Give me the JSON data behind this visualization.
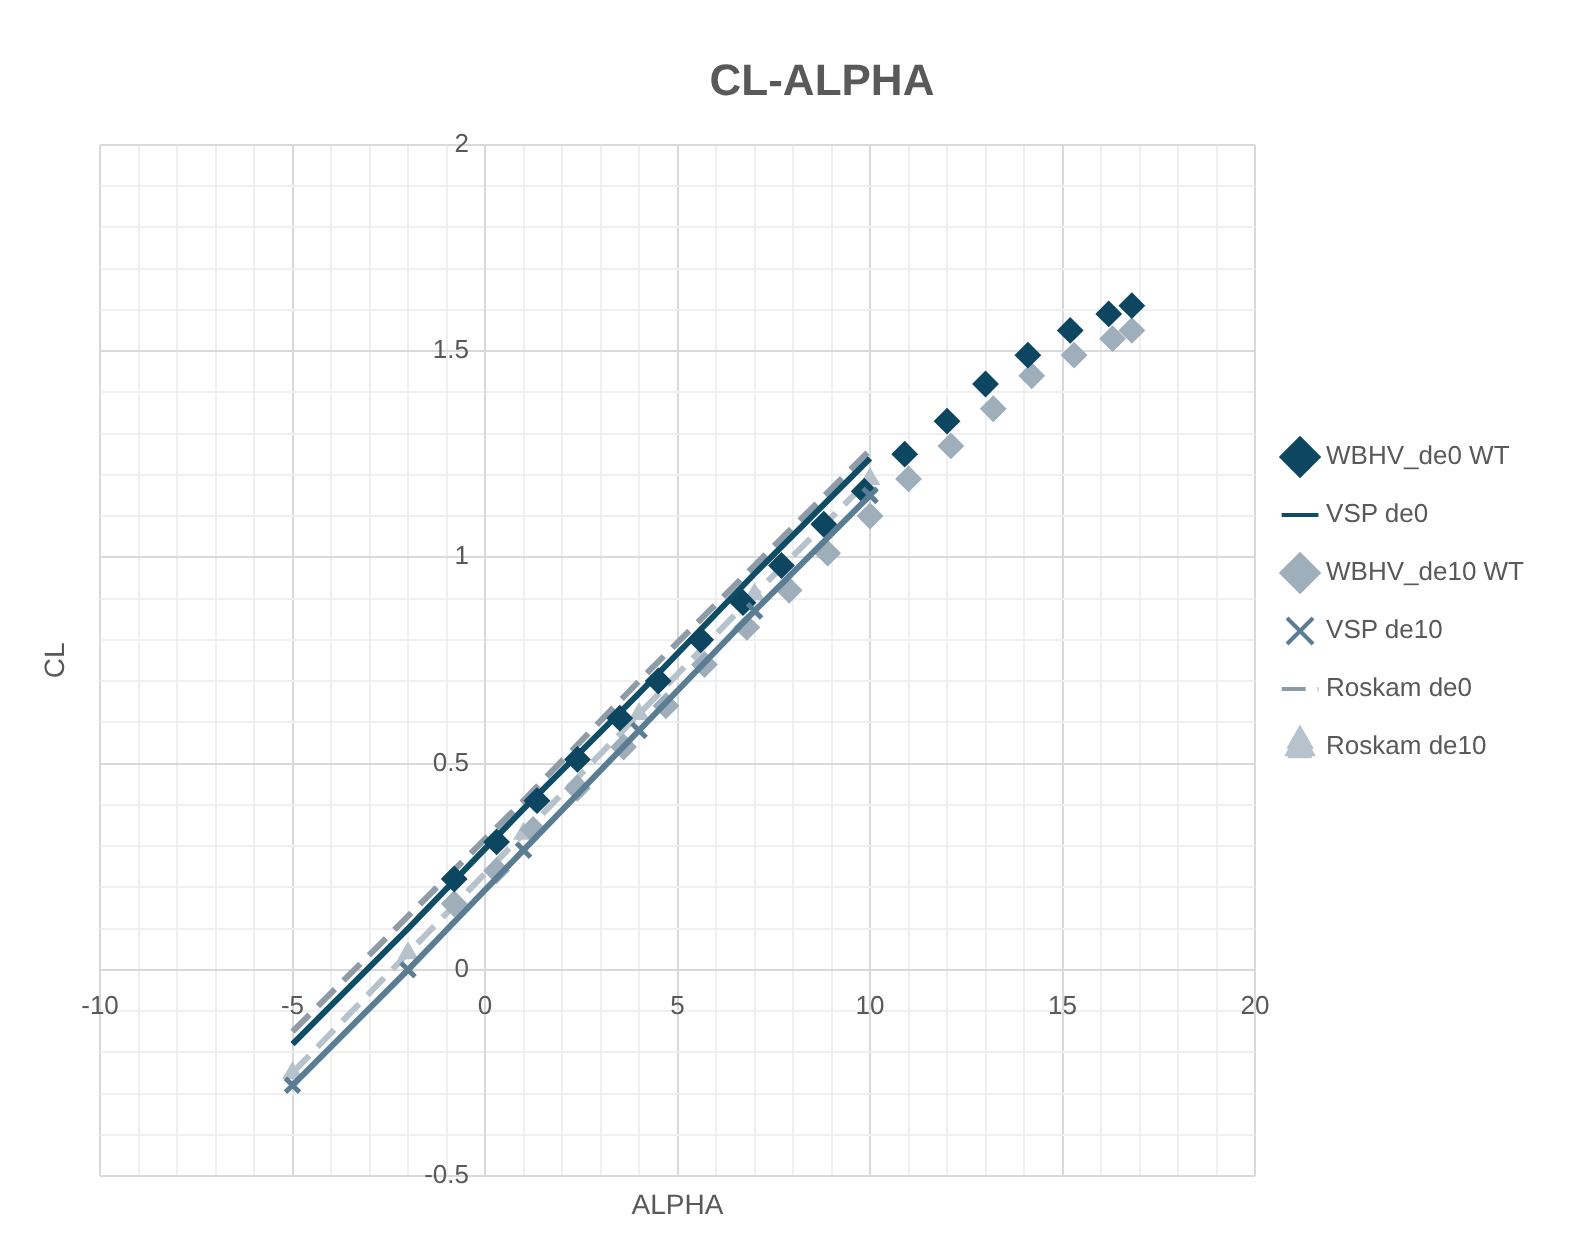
{
  "chart_data": {
    "type": "scatter",
    "title": "CL-ALPHA",
    "xlabel": "ALPHA",
    "ylabel": "CL",
    "xlim": [
      -10,
      20
    ],
    "ylim": [
      -0.5,
      2
    ],
    "xticks": [
      -10,
      {
        "value": -9,
        "label": null
      },
      {
        "value": -8,
        "label": null
      },
      {
        "value": -7,
        "label": null
      },
      {
        "value": -6,
        "label": null
      },
      -5,
      {
        "value": -4,
        "label": null
      },
      {
        "value": -3,
        "label": null
      },
      {
        "value": -2,
        "label": null
      },
      {
        "value": -1,
        "label": null
      },
      0,
      {
        "value": 1,
        "label": null
      },
      {
        "value": 2,
        "label": null
      },
      {
        "value": 3,
        "label": null
      },
      {
        "value": 4,
        "label": null
      },
      5,
      {
        "value": 6,
        "label": null
      },
      {
        "value": 7,
        "label": null
      },
      {
        "value": 8,
        "label": null
      },
      {
        "value": 9,
        "label": null
      },
      10,
      {
        "value": 11,
        "label": null
      },
      {
        "value": 12,
        "label": null
      },
      {
        "value": 13,
        "label": null
      },
      {
        "value": 14,
        "label": null
      },
      15,
      {
        "value": 16,
        "label": null
      },
      {
        "value": 17,
        "label": null
      },
      {
        "value": 18,
        "label": null
      },
      {
        "value": 19,
        "label": null
      },
      20
    ],
    "yticks": [
      -0.5,
      {
        "value": -0.4,
        "label": null
      },
      {
        "value": -0.3,
        "label": null
      },
      {
        "value": -0.2,
        "label": null
      },
      {
        "value": -0.1,
        "label": null
      },
      0,
      {
        "value": 0.1,
        "label": null
      },
      {
        "value": 0.2,
        "label": null
      },
      {
        "value": 0.3,
        "label": null
      },
      {
        "value": 0.4,
        "label": null
      },
      0.5,
      {
        "value": 0.6,
        "label": null
      },
      {
        "value": 0.7,
        "label": null
      },
      {
        "value": 0.8,
        "label": null
      },
      {
        "value": 0.9,
        "label": null
      },
      1,
      {
        "value": 1.1,
        "label": null
      },
      {
        "value": 1.2,
        "label": null
      },
      {
        "value": 1.3,
        "label": null
      },
      {
        "value": 1.4,
        "label": null
      },
      1.5,
      {
        "value": 1.6,
        "label": null
      },
      {
        "value": 1.7,
        "label": null
      },
      {
        "value": 1.8,
        "label": null
      },
      {
        "value": 1.9,
        "label": null
      },
      2
    ],
    "grid": true,
    "legend": "right",
    "series": [
      {
        "name": "WBHV_de0 WT",
        "type": "scatter",
        "marker": "diamond",
        "color": "#0c4660",
        "x": [
          -0.8,
          0.3,
          1.35,
          2.4,
          3.5,
          4.5,
          5.6,
          6.7,
          7.7,
          8.8,
          9.85,
          10.9,
          12.0,
          13.0,
          14.1,
          15.2,
          16.2,
          16.8
        ],
        "values": [
          0.22,
          0.31,
          0.41,
          0.51,
          0.61,
          0.7,
          0.8,
          0.89,
          0.98,
          1.08,
          1.16,
          1.25,
          1.33,
          1.42,
          1.49,
          1.55,
          1.59,
          1.61
        ]
      },
      {
        "name": "VSP de0",
        "type": "line",
        "marker": "none",
        "line_style": "solid",
        "color": "#0f4c66",
        "x": [
          -5,
          -2,
          1,
          4,
          7,
          10
        ],
        "values": [
          -0.18,
          0.1,
          0.39,
          0.67,
          0.96,
          1.24
        ]
      },
      {
        "name": "WBHV_de10 WT",
        "type": "scatter",
        "marker": "diamond",
        "color": "#9eaeba",
        "x": [
          -0.8,
          0.3,
          1.25,
          2.4,
          3.6,
          4.7,
          5.7,
          6.8,
          7.9,
          8.9,
          10.0,
          11.0,
          12.1,
          13.2,
          14.2,
          15.3,
          16.3,
          16.8
        ],
        "values": [
          0.16,
          0.24,
          0.34,
          0.44,
          0.54,
          0.64,
          0.74,
          0.83,
          0.92,
          1.01,
          1.1,
          1.19,
          1.27,
          1.36,
          1.44,
          1.49,
          1.53,
          1.55
        ]
      },
      {
        "name": "VSP de10",
        "type": "line",
        "marker": "cross",
        "line_style": "solid",
        "color": "#5b7d94",
        "x": [
          -5,
          -2,
          1,
          4,
          7,
          10
        ],
        "values": [
          -0.28,
          0.0,
          0.29,
          0.58,
          0.87,
          1.15
        ]
      },
      {
        "name": "Roskam de0",
        "type": "line",
        "marker": "none",
        "line_style": "dashed",
        "color": "#8f9ca7",
        "x": [
          -5,
          -2,
          1,
          4,
          7,
          10
        ],
        "values": [
          -0.15,
          0.13,
          0.41,
          0.7,
          0.98,
          1.26
        ]
      },
      {
        "name": "Roskam de10",
        "type": "line",
        "marker": "triangle",
        "line_style": "dashed",
        "color": "#b6c2cc",
        "x": [
          -5,
          -2,
          1,
          4,
          7,
          10
        ],
        "values": [
          -0.25,
          0.04,
          0.33,
          0.62,
          0.91,
          1.19
        ]
      }
    ]
  }
}
